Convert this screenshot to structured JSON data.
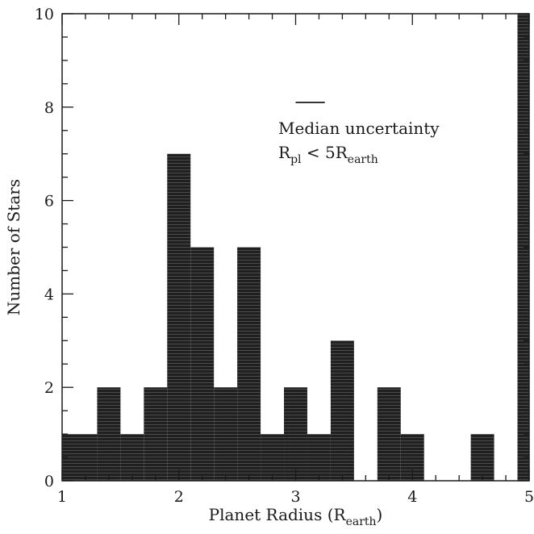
{
  "chart_data": {
    "type": "bar",
    "xlabel": "Planet Radius (R",
    "xlabel_sub": "earth",
    "xlabel_close": ")",
    "ylabel": "Number of Stars",
    "xlim": [
      1,
      5
    ],
    "ylim": [
      0,
      10
    ],
    "x_ticks": [
      1,
      2,
      3,
      4,
      5
    ],
    "y_ticks": [
      0,
      2,
      4,
      6,
      8,
      10
    ],
    "x_tick_labels": [
      "1",
      "2",
      "3",
      "4",
      "5"
    ],
    "y_tick_labels": [
      "0",
      "2",
      "4",
      "6",
      "8",
      "10"
    ],
    "grid": false,
    "bar_fill": "#202020",
    "stripe_color": "#4a4a4a",
    "bins": [
      {
        "x0": 1.0,
        "x1": 1.3,
        "count": 1
      },
      {
        "x0": 1.3,
        "x1": 1.5,
        "count": 2
      },
      {
        "x0": 1.5,
        "x1": 1.7,
        "count": 1
      },
      {
        "x0": 1.7,
        "x1": 1.9,
        "count": 2
      },
      {
        "x0": 1.9,
        "x1": 2.1,
        "count": 7
      },
      {
        "x0": 2.1,
        "x1": 2.3,
        "count": 5
      },
      {
        "x0": 2.3,
        "x1": 2.5,
        "count": 2
      },
      {
        "x0": 2.5,
        "x1": 2.7,
        "count": 5
      },
      {
        "x0": 2.7,
        "x1": 2.9,
        "count": 1
      },
      {
        "x0": 2.9,
        "x1": 3.1,
        "count": 2
      },
      {
        "x0": 3.1,
        "x1": 3.3,
        "count": 1
      },
      {
        "x0": 3.3,
        "x1": 3.5,
        "count": 3
      },
      {
        "x0": 3.7,
        "x1": 3.9,
        "count": 2
      },
      {
        "x0": 3.9,
        "x1": 4.1,
        "count": 1
      },
      {
        "x0": 4.5,
        "x1": 4.7,
        "count": 1
      },
      {
        "x0": 4.9,
        "x1": 5.0,
        "count": 10
      }
    ],
    "annotation": {
      "uncertainty_bar": {
        "x0": 3.0,
        "x1": 3.25,
        "y": 8.1
      },
      "line1": "Median uncertainty",
      "line2_main": "R",
      "line2_sub": "pl",
      "line2_mid": " < 5R",
      "line2_sub2": "earth"
    }
  }
}
